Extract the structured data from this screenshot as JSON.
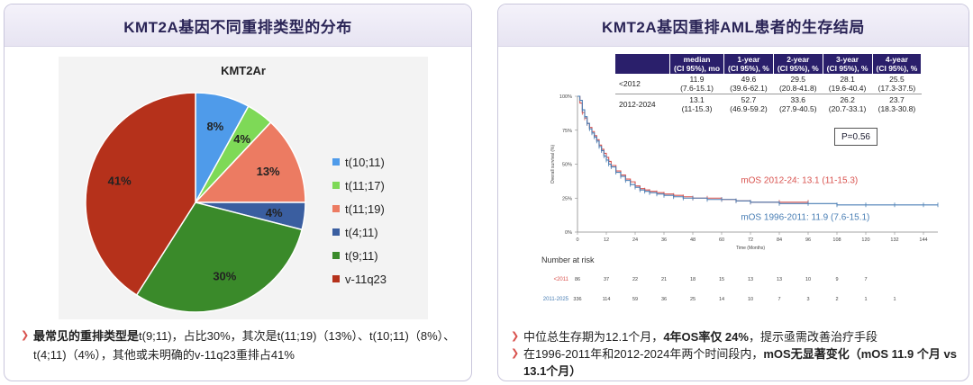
{
  "left_panel": {
    "header": "KMT2A基因不同重排类型的分布",
    "bullet": {
      "prefix": "最常见的重排类型是",
      "text": "t(9;11)，占比30%，其次是t(11;19)（13%）、t(10;11)（8%）、t(4;11)（4%），其他或未明确的v-11q23重排占41%"
    }
  },
  "right_panel": {
    "header": "KMT2A基因重排AML患者的生存结局",
    "table": {
      "headers": [
        "median (CI 95%), mo",
        "1-year (CI 95%), %",
        "2-year (CI 95%), %",
        "3-year (CI 95%), %",
        "4-year (CI 95%), %"
      ],
      "rows": [
        {
          "label": "<2012",
          "cells": [
            [
              "11.9",
              "(7.6-15.1)"
            ],
            [
              "49.6",
              "(39.6-62.1)"
            ],
            [
              "29.5",
              "(20.8-41.8)"
            ],
            [
              "28.1",
              "(19.6-40.4)"
            ],
            [
              "25.5",
              "(17.3-37.5)"
            ]
          ]
        },
        {
          "label": "2012-2024",
          "cells": [
            [
              "13.1",
              "(11-15.3)"
            ],
            [
              "52.7",
              "(46.9-59.2)"
            ],
            [
              "33.6",
              "(27.9-40.5)"
            ],
            [
              "26.2",
              "(20.7-33.1)"
            ],
            [
              "23.7",
              "(18.3-30.8)"
            ]
          ]
        }
      ]
    },
    "p_value": "P=0.56",
    "bullet1": {
      "a": "中位总生存期为12.1个月，",
      "b": "4年OS率仅 24%",
      "c": "，提示亟需改善治疗手段"
    },
    "bullet2": {
      "a": "在1996-2011年和2012-2024年两个时间段内，",
      "b": "mOS无显著变化（mOS 11.9 个月 vs 13.1个月）"
    }
  },
  "chart_data": [
    {
      "type": "pie",
      "title": "KMT2Ar",
      "slices": [
        {
          "label": "t(10;11)",
          "value": 8,
          "color": "#4f9bea"
        },
        {
          "label": "t(11;17)",
          "value": 4,
          "color": "#7ed957"
        },
        {
          "label": "t(11;19)",
          "value": 13,
          "color": "#ec7b62"
        },
        {
          "label": "t(4;11)",
          "value": 4,
          "color": "#3a5ea0"
        },
        {
          "label": "t(9;11)",
          "value": 30,
          "color": "#3a8a2a"
        },
        {
          "label": "v-11q23",
          "value": 41,
          "color": "#b5311b"
        }
      ],
      "legend_position": "right"
    },
    {
      "type": "line",
      "title": "",
      "xlabel": "Time (Months)",
      "ylabel": "Overall survival (%)",
      "x_ticks": [
        0,
        12,
        24,
        36,
        48,
        60,
        72,
        84,
        96,
        108,
        120,
        132,
        144
      ],
      "y_ticks": [
        "0%",
        "25%",
        "50%",
        "75%",
        "100%"
      ],
      "xlim": [
        0,
        150
      ],
      "ylim": [
        0,
        100
      ],
      "series": [
        {
          "name": "mOS 2012-24: 13.1 (11-15.3)",
          "color": "#d9534f",
          "x": [
            0,
            1,
            2,
            3,
            4,
            5,
            6,
            7,
            8,
            9,
            10,
            11,
            12,
            13,
            14,
            16,
            18,
            20,
            22,
            24,
            26,
            28,
            30,
            33,
            36,
            40,
            44,
            48,
            54,
            60,
            66,
            72,
            84,
            96
          ],
          "y": [
            100,
            95,
            88,
            84,
            80,
            77,
            74,
            71,
            68,
            64,
            61,
            58,
            55,
            52,
            49,
            45,
            42,
            39,
            37,
            34,
            32,
            31,
            30,
            29,
            28,
            27,
            26,
            25,
            25,
            24,
            23,
            22,
            22,
            22
          ]
        },
        {
          "name": "mOS 1996-2011: 11.9 (7.6-15.1)",
          "color": "#4a7fb5",
          "x": [
            0,
            1,
            2,
            3,
            4,
            5,
            6,
            7,
            8,
            9,
            10,
            11,
            12,
            13,
            14,
            16,
            18,
            20,
            22,
            24,
            26,
            28,
            30,
            33,
            36,
            40,
            44,
            48,
            54,
            60,
            66,
            72,
            84,
            96,
            108,
            120,
            132,
            144,
            150
          ],
          "y": [
            100,
            97,
            90,
            85,
            80,
            76,
            73,
            70,
            67,
            63,
            60,
            56,
            53,
            50,
            48,
            44,
            41,
            38,
            35,
            33,
            31,
            30,
            29,
            28,
            27,
            26,
            25,
            25,
            24,
            24,
            23,
            22,
            21,
            21,
            20,
            20,
            20,
            20,
            20
          ]
        }
      ]
    }
  ],
  "risk_table": {
    "title": "Number at risk",
    "rows": [
      {
        "label": "<2011",
        "color": "#d9534f",
        "values": [
          "86",
          "37",
          "22",
          "21",
          "18",
          "15",
          "13",
          "13",
          "10",
          "9",
          "7"
        ]
      },
      {
        "label": "2011-2025",
        "color": "#4a7fb5",
        "values": [
          "336",
          "114",
          "59",
          "36",
          "25",
          "14",
          "10",
          "7",
          "3",
          "2",
          "1",
          "1"
        ]
      }
    ]
  }
}
